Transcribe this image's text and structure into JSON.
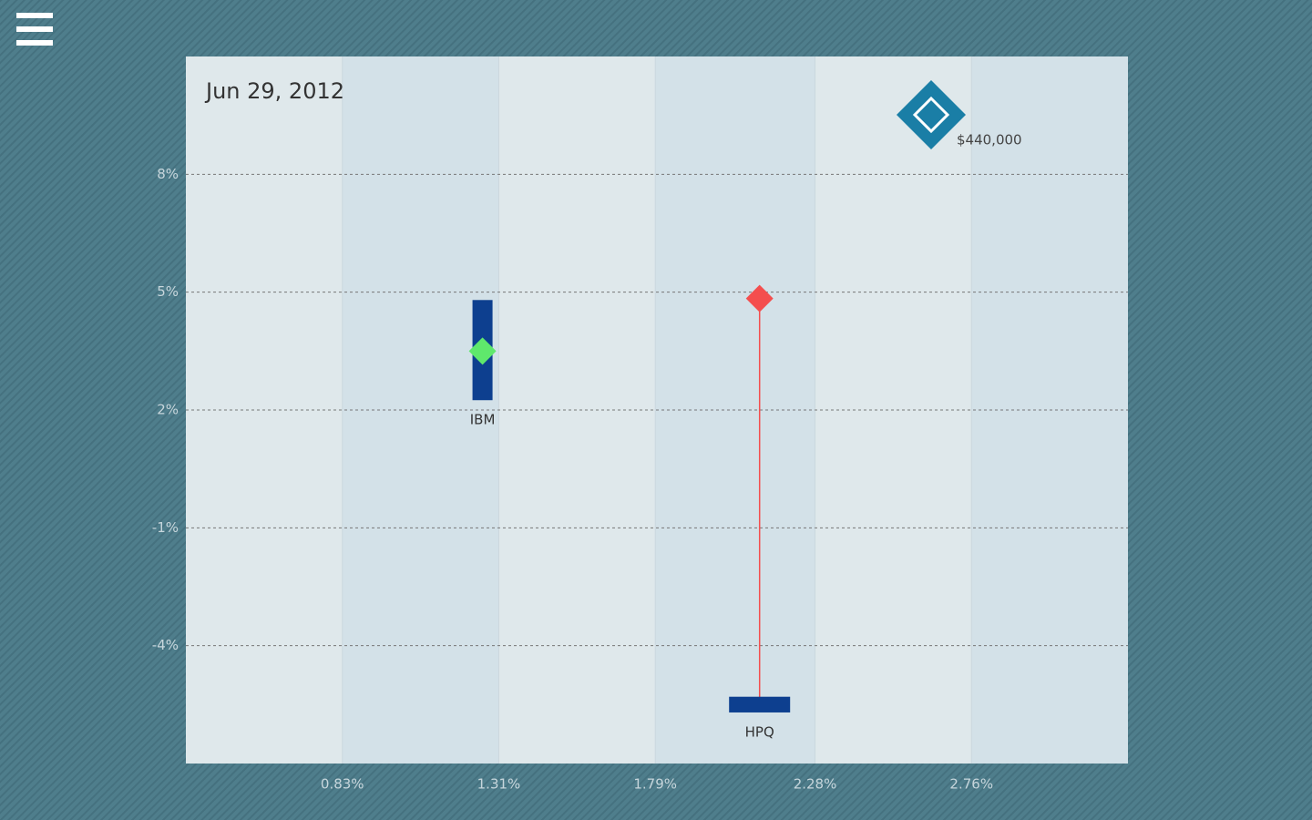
{
  "chart_data": {
    "type": "range-scatter",
    "title": "Jun 29, 2012",
    "size_legend": "$440,000",
    "xlim": [
      0.35,
      3.24
    ],
    "xticks": [
      {
        "value": 0.83,
        "label": "0.83%"
      },
      {
        "value": 1.31,
        "label": "1.31%"
      },
      {
        "value": 1.79,
        "label": "1.79%"
      },
      {
        "value": 2.28,
        "label": "2.28%"
      },
      {
        "value": 2.76,
        "label": "2.76%"
      }
    ],
    "ylim": [
      -7,
      11
    ],
    "yticks": [
      {
        "value": 8,
        "label": "8%"
      },
      {
        "value": 5,
        "label": "5%"
      },
      {
        "value": 2,
        "label": "2%"
      },
      {
        "value": -1,
        "label": "-1%"
      },
      {
        "value": -4,
        "label": "-4%"
      }
    ],
    "grid": true,
    "series": [
      {
        "name": "IBM",
        "color": "#5fe86c",
        "bar_color": "#0d3f8f",
        "x": 1.26,
        "y": 3.5,
        "range": [
          2.25,
          4.8
        ]
      },
      {
        "name": "HPQ",
        "color": "#f44e4e",
        "bar_color": "#0d3f8f",
        "x": 2.11,
        "y": 4.84,
        "range": [
          -5.7,
          -5.3
        ]
      }
    ]
  }
}
